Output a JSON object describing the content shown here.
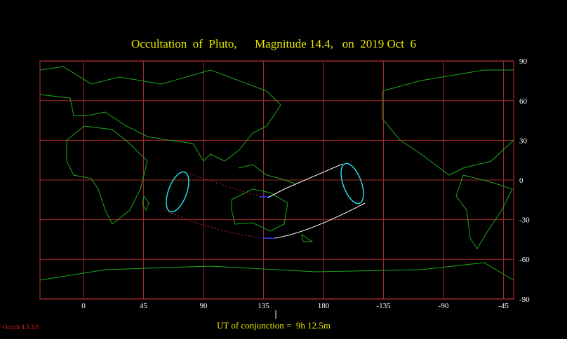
{
  "title": "Occultation  of  Pluto,      Magnitude 14.4,   on  2019 Oct  6",
  "longitude_ticks": [
    0,
    45,
    90,
    135,
    180,
    -135,
    -90,
    -45
  ],
  "latitude_ticks": [
    90,
    60,
    30,
    0,
    -30,
    -60,
    -90
  ],
  "conjunction_label": "UT of conjunction =  9h 12.5m",
  "version": "Occult 4.3.3.0"
}
